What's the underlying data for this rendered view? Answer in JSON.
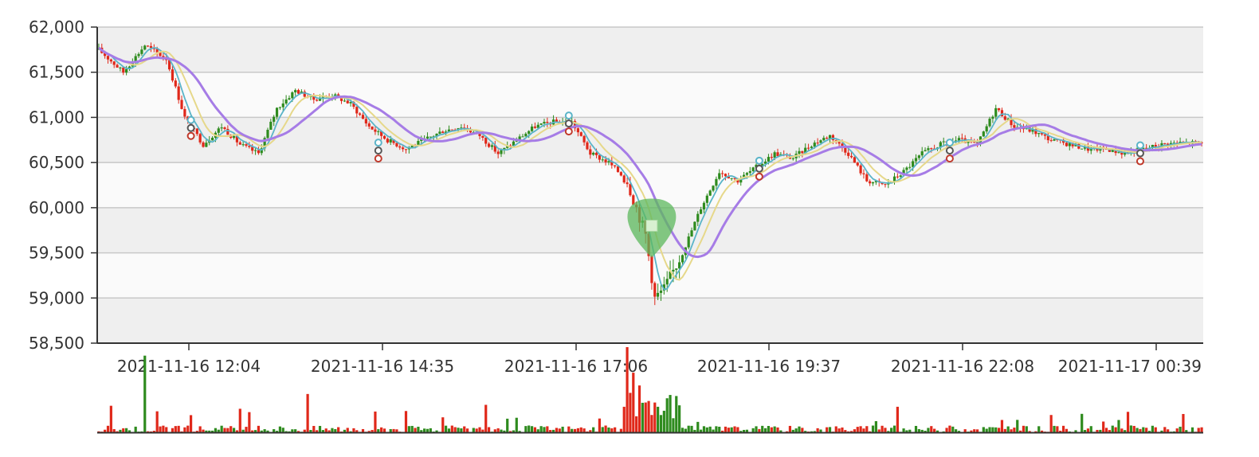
{
  "chart_data": {
    "type": "candlestick",
    "title": "",
    "xlabel": "",
    "ylabel": "",
    "ylim": [
      58500,
      62000
    ],
    "y_ticks": [
      "62,000",
      "61,500",
      "61,000",
      "60,500",
      "60,000",
      "59,500",
      "59,000",
      "58,500"
    ],
    "y_tick_values": [
      62000,
      61500,
      61000,
      60500,
      60000,
      59500,
      59000,
      58500
    ],
    "x_ticks": [
      "2021-11-16 12:04",
      "2021-11-16 14:35",
      "2021-11-16 17:06",
      "2021-11-16 19:37",
      "2021-11-16 22:08",
      "2021-11-17 00:39"
    ],
    "grid": true,
    "colors": {
      "up": "#2e8b1e",
      "down": "#e0281a",
      "ma_long": "#a67ce6",
      "ma_mid": "#e6d88a",
      "ma_short": "#5ab4c8",
      "band_dark": "#efefef",
      "band_light": "#fafafa",
      "highlight": "#5cb85c"
    },
    "price_path": [
      [
        0,
        61750
      ],
      [
        8,
        61500
      ],
      [
        15,
        61800
      ],
      [
        22,
        61650
      ],
      [
        28,
        61000
      ],
      [
        34,
        60700
      ],
      [
        40,
        60900
      ],
      [
        46,
        60700
      ],
      [
        52,
        60600
      ],
      [
        58,
        61100
      ],
      [
        64,
        61300
      ],
      [
        70,
        61200
      ],
      [
        76,
        61250
      ],
      [
        82,
        61150
      ],
      [
        88,
        60900
      ],
      [
        94,
        60750
      ],
      [
        100,
        60650
      ],
      [
        106,
        60750
      ],
      [
        112,
        60850
      ],
      [
        118,
        60900
      ],
      [
        124,
        60800
      ],
      [
        130,
        60600
      ],
      [
        136,
        60750
      ],
      [
        142,
        60900
      ],
      [
        148,
        60950
      ],
      [
        154,
        60950
      ],
      [
        160,
        60600
      ],
      [
        166,
        60500
      ],
      [
        172,
        60300
      ],
      [
        178,
        59700
      ],
      [
        181,
        59000
      ],
      [
        184,
        59100
      ],
      [
        190,
        59500
      ],
      [
        196,
        60000
      ],
      [
        202,
        60400
      ],
      [
        208,
        60300
      ],
      [
        214,
        60450
      ],
      [
        220,
        60600
      ],
      [
        226,
        60550
      ],
      [
        232,
        60700
      ],
      [
        238,
        60800
      ],
      [
        244,
        60600
      ],
      [
        250,
        60300
      ],
      [
        256,
        60250
      ],
      [
        262,
        60400
      ],
      [
        268,
        60600
      ],
      [
        274,
        60700
      ],
      [
        280,
        60750
      ],
      [
        286,
        60700
      ],
      [
        292,
        61100
      ],
      [
        298,
        60900
      ],
      [
        304,
        60850
      ],
      [
        310,
        60750
      ],
      [
        316,
        60700
      ],
      [
        322,
        60650
      ],
      [
        328,
        60650
      ],
      [
        334,
        60600
      ],
      [
        340,
        60650
      ],
      [
        346,
        60700
      ],
      [
        352,
        60720
      ]
    ],
    "ma_markers": [
      {
        "x": 30,
        "y": 60900
      },
      {
        "x": 91,
        "y": 60650
      },
      {
        "x": 153,
        "y": 60950
      },
      {
        "x": 215,
        "y": 60450
      },
      {
        "x": 277,
        "y": 60650
      },
      {
        "x": 339,
        "y": 60620
      }
    ],
    "highlight_marker": {
      "x": 180,
      "y": 59800
    },
    "volume_spikes": [
      {
        "x": 15,
        "v": 0.9
      },
      {
        "x": 68,
        "v": 0.45
      },
      {
        "x": 172,
        "v": 1.0
      },
      {
        "x": 174,
        "v": 0.7
      },
      {
        "x": 176,
        "v": 0.55
      },
      {
        "x": 178,
        "v": 0.35
      },
      {
        "x": 182,
        "v": 0.3
      },
      {
        "x": 100,
        "v": 0.25
      },
      {
        "x": 260,
        "v": 0.3
      }
    ]
  }
}
